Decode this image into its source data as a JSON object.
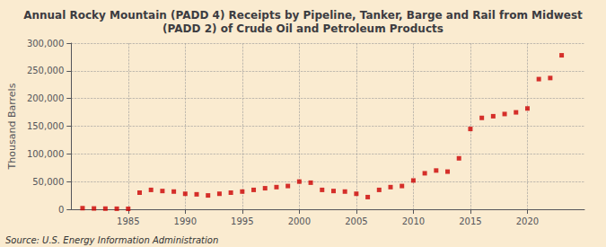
{
  "chart_data": {
    "type": "scatter",
    "title": "Annual Rocky Mountain (PADD 4) Receipts by Pipeline, Tanker, Barge and Rail from Midwest\n(PADD 2) of Crude Oil and Petroleum Products",
    "ylabel": "Thousand Barrels",
    "annotation": "Source: U.S. Energy Information Administration",
    "x": [
      1981,
      1982,
      1983,
      1984,
      1985,
      1986,
      1987,
      1988,
      1989,
      1990,
      1991,
      1992,
      1993,
      1994,
      1995,
      1996,
      1997,
      1998,
      1999,
      2000,
      2001,
      2002,
      2003,
      2004,
      2005,
      2006,
      2007,
      2008,
      2009,
      2010,
      2011,
      2012,
      2013,
      2014,
      2015,
      2016,
      2017,
      2018,
      2019,
      2020,
      2021,
      2022,
      2023
    ],
    "values": [
      2000,
      1500,
      1200,
      1000,
      800,
      30000,
      35000,
      33000,
      32000,
      28000,
      27000,
      25000,
      28000,
      30000,
      32000,
      35000,
      38000,
      40000,
      42000,
      50000,
      48000,
      35000,
      33000,
      32000,
      28000,
      22000,
      35000,
      40000,
      42000,
      52000,
      65000,
      70000,
      68000,
      92000,
      145000,
      165000,
      168000,
      172000,
      175000,
      182000,
      235000,
      237000,
      278000
    ],
    "color": "#cc0000",
    "marker": "square",
    "xlim": [
      1980,
      2025
    ],
    "xticks": [
      1985,
      1990,
      1995,
      2000,
      2005,
      2010,
      2015,
      2020
    ],
    "ylim": [
      0,
      300000
    ],
    "yticks": [
      0,
      {
        "value": 50000,
        "label": "50,000"
      },
      {
        "value": 100000,
        "label": "100,000"
      },
      {
        "value": 150000,
        "label": "150,000"
      },
      {
        "value": 200000,
        "label": "200,000"
      },
      {
        "value": 250000,
        "label": "250,000"
      },
      {
        "value": 300000,
        "label": "300,000"
      }
    ],
    "grid": true
  }
}
